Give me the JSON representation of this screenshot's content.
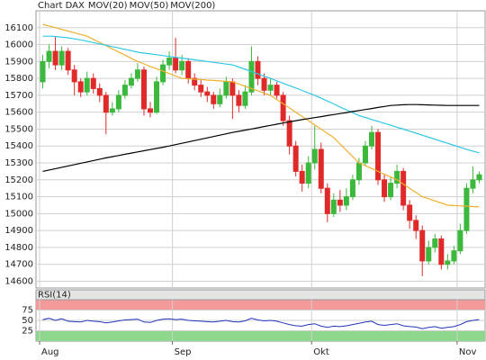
{
  "chart_data": [
    {
      "type": "candlestick",
      "title": "Chart DAX",
      "categories": [
        "Aug",
        null,
        null,
        null,
        null,
        null,
        null,
        null,
        null,
        null,
        null,
        null,
        null,
        null,
        null,
        null,
        null,
        null,
        null,
        null,
        null,
        "Sep",
        null,
        null,
        null,
        null,
        null,
        null,
        null,
        null,
        null,
        null,
        null,
        null,
        null,
        null,
        null,
        null,
        null,
        null,
        null,
        null,
        null,
        "Okt",
        null,
        null,
        null,
        null,
        null,
        null,
        null,
        null,
        null,
        null,
        null,
        null,
        null,
        null,
        null,
        null,
        null,
        null,
        null,
        null,
        null,
        null,
        "Nov",
        null,
        null,
        null
      ],
      "open": [
        15780,
        15900,
        15960,
        15880,
        15960,
        15850,
        15780,
        15720,
        15800,
        15740,
        15700,
        15600,
        15620,
        15700,
        15760,
        15800,
        15850,
        15620,
        15600,
        15780,
        15880,
        15920,
        15850,
        15900,
        15800,
        15760,
        15720,
        15700,
        15650,
        15700,
        15780,
        15700,
        15640,
        15720,
        15900,
        15800,
        15730,
        15760,
        15700,
        15550,
        15400,
        15250,
        15180,
        15300,
        15380,
        15150,
        15000,
        15080,
        15050,
        15100,
        15200,
        15300,
        15400,
        15480,
        15200,
        15100,
        15180,
        15250,
        15050,
        14960,
        14900,
        14720,
        14800,
        14850,
        14700,
        14720,
        14780,
        14900,
        15150,
        15200
      ],
      "high": [
        15940,
        16000,
        16050,
        15990,
        15980,
        15880,
        15800,
        15840,
        15830,
        15770,
        15720,
        15660,
        15730,
        15790,
        15830,
        15890,
        15870,
        15660,
        15810,
        15910,
        15960,
        16040,
        15940,
        15920,
        15830,
        15790,
        15750,
        15720,
        15740,
        15810,
        15800,
        15730,
        15760,
        15990,
        15930,
        15830,
        15800,
        15780,
        15720,
        15580,
        15430,
        15290,
        15340,
        15520,
        15420,
        15180,
        15120,
        15140,
        15150,
        15230,
        15330,
        15430,
        15520,
        15500,
        15230,
        15220,
        15290,
        15270,
        15080,
        14990,
        14930,
        14840,
        14880,
        14870,
        14760,
        14810,
        14940,
        15180,
        15280,
        15250
      ],
      "low": [
        15740,
        15860,
        15850,
        15850,
        15820,
        15700,
        15690,
        15700,
        15710,
        15660,
        15470,
        15580,
        15600,
        15680,
        15740,
        15780,
        15580,
        15570,
        15590,
        15760,
        15850,
        15830,
        15820,
        15770,
        15730,
        15690,
        15660,
        15620,
        15630,
        15680,
        15560,
        15600,
        15620,
        15700,
        15760,
        15700,
        15700,
        15680,
        15520,
        15350,
        15220,
        15130,
        15150,
        15260,
        15120,
        14950,
        14980,
        15010,
        15020,
        15080,
        15170,
        15280,
        15380,
        15170,
        15070,
        15080,
        15150,
        15020,
        14910,
        14850,
        14630,
        14700,
        14770,
        14670,
        14670,
        14700,
        14760,
        14880,
        15120,
        15180
      ],
      "close": [
        15900,
        15960,
        15880,
        15960,
        15850,
        15780,
        15720,
        15800,
        15740,
        15700,
        15600,
        15620,
        15700,
        15760,
        15800,
        15850,
        15620,
        15600,
        15780,
        15880,
        15920,
        15850,
        15900,
        15800,
        15760,
        15720,
        15700,
        15650,
        15700,
        15780,
        15700,
        15640,
        15720,
        15900,
        15800,
        15730,
        15760,
        15700,
        15550,
        15400,
        15250,
        15180,
        15300,
        15380,
        15150,
        15000,
        15080,
        15050,
        15100,
        15200,
        15300,
        15400,
        15480,
        15200,
        15100,
        15180,
        15250,
        15050,
        14960,
        14900,
        14720,
        14800,
        14850,
        14700,
        14720,
        14780,
        14900,
        15150,
        15200,
        15230
      ],
      "up_color": "#3cb83c",
      "down_color": "#e02a2a",
      "title_color": "#888888",
      "series": [
        {
          "name": "MOV(20)",
          "color": "#f0b030",
          "values": [
            16120,
            16110,
            16100,
            16090,
            16080,
            16070,
            16060,
            16050,
            16031,
            16013,
            15994,
            15975,
            15956,
            15938,
            15919,
            15900,
            15886,
            15871,
            15857,
            15843,
            15829,
            15814,
            15800,
            15798,
            15795,
            15793,
            15790,
            15788,
            15785,
            15783,
            15780,
            15767,
            15753,
            15740,
            15727,
            15713,
            15700,
            15675,
            15650,
            15625,
            15600,
            15575,
            15550,
            15525,
            15500,
            15475,
            15450,
            15412,
            15375,
            15338,
            15300,
            15283,
            15267,
            15250,
            15233,
            15217,
            15200,
            15175,
            15150,
            15125,
            15100,
            15088,
            15075,
            15063,
            15050,
            15048,
            15046,
            15044,
            15042,
            15040
          ]
        },
        {
          "name": "MOV(50)",
          "color": "#30c8e8",
          "values": [
            16050,
            16050,
            16048,
            16044,
            16040,
            16034,
            16028,
            16020,
            16012,
            16004,
            15996,
            15988,
            15980,
            15972,
            15964,
            15955,
            15950,
            15945,
            15940,
            15935,
            15930,
            15925,
            15920,
            15915,
            15910,
            15905,
            15900,
            15895,
            15890,
            15885,
            15880,
            15867,
            15854,
            15840,
            15827,
            15813,
            15800,
            15786,
            15771,
            15757,
            15743,
            15729,
            15714,
            15700,
            15683,
            15666,
            15649,
            15631,
            15614,
            15597,
            15580,
            15569,
            15557,
            15546,
            15534,
            15523,
            15511,
            15500,
            15488,
            15476,
            15464,
            15452,
            15440,
            15428,
            15416,
            15404,
            15392,
            15380,
            15370,
            15360
          ]
        },
        {
          "name": "MOV(200)",
          "color": "#000000",
          "values": [
            15250,
            15258,
            15266,
            15274,
            15282,
            15290,
            15298,
            15306,
            15314,
            15322,
            15330,
            15337,
            15344,
            15351,
            15358,
            15365,
            15372,
            15379,
            15386,
            15393,
            15400,
            15408,
            15416,
            15424,
            15432,
            15440,
            15448,
            15456,
            15464,
            15472,
            15480,
            15487,
            15494,
            15501,
            15508,
            15515,
            15522,
            15529,
            15536,
            15543,
            15550,
            15556,
            15562,
            15568,
            15574,
            15580,
            15586,
            15592,
            15598,
            15604,
            15610,
            15616,
            15622,
            15628,
            15634,
            15640,
            15642,
            15644,
            15645,
            15645,
            15644,
            15643,
            15642,
            15641,
            15640,
            15640,
            15640,
            15640,
            15640,
            15640
          ]
        }
      ],
      "ylim": [
        14560,
        16200
      ],
      "yticks": [
        14600,
        14700,
        14800,
        14900,
        15000,
        15100,
        15200,
        15300,
        15400,
        15500,
        15600,
        15700,
        15800,
        15900,
        16000,
        16100
      ],
      "grid": true
    },
    {
      "type": "line",
      "title": "RSI(14)",
      "color": "#2233bb",
      "values": [
        52,
        55,
        50,
        54,
        48,
        47,
        46,
        50,
        48,
        47,
        44,
        46,
        49,
        51,
        52,
        53,
        46,
        45,
        50,
        53,
        54,
        52,
        53,
        50,
        49,
        48,
        47,
        46,
        48,
        50,
        47,
        46,
        49,
        55,
        51,
        49,
        50,
        48,
        44,
        40,
        37,
        36,
        40,
        42,
        36,
        33,
        36,
        35,
        37,
        40,
        43,
        46,
        48,
        40,
        38,
        40,
        42,
        37,
        35,
        34,
        30,
        33,
        35,
        31,
        33,
        35,
        40,
        47,
        50,
        52
      ],
      "ylim": [
        0,
        100
      ],
      "yticks": [
        25,
        50,
        75
      ],
      "grid": true,
      "zones": [
        {
          "from": 75,
          "to": 100,
          "color": "#f49a9a"
        },
        {
          "from": 0,
          "to": 25,
          "color": "#8ed88e"
        }
      ]
    }
  ]
}
